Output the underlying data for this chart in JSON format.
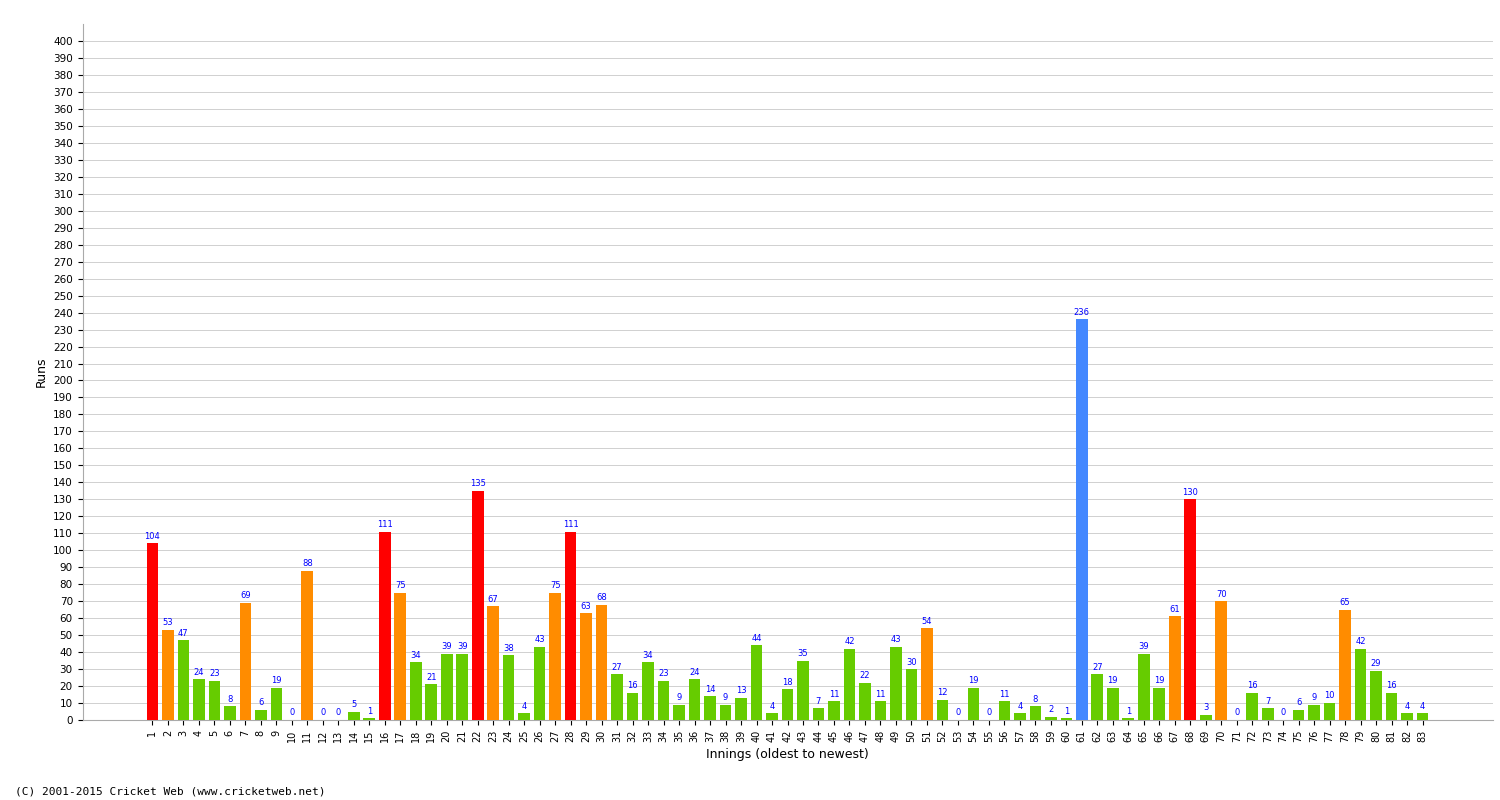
{
  "xlabel": "Innings (oldest to newest)",
  "ylabel": "Runs",
  "background_color": "#ffffff",
  "grid_color": "#d0d0d0",
  "innings": [
    1,
    2,
    3,
    4,
    5,
    6,
    7,
    8,
    9,
    10,
    11,
    12,
    13,
    14,
    15,
    16,
    17,
    18,
    19,
    20,
    21,
    22,
    23,
    24,
    25,
    26,
    27,
    28,
    29,
    30,
    31,
    32,
    33,
    34,
    35,
    36,
    37,
    38,
    39,
    40,
    41,
    42,
    43,
    44,
    45,
    46,
    47,
    48,
    49,
    50,
    51,
    52,
    53,
    54,
    55,
    56,
    57,
    58,
    59,
    60,
    61,
    62,
    63,
    64,
    65,
    66,
    67,
    68,
    69,
    70,
    71,
    72,
    73,
    74,
    75,
    76,
    77,
    78,
    79,
    80,
    81,
    82,
    83
  ],
  "scores": [
    104,
    53,
    47,
    24,
    23,
    8,
    69,
    6,
    19,
    0,
    88,
    0,
    0,
    5,
    1,
    111,
    75,
    34,
    21,
    39,
    39,
    135,
    67,
    38,
    4,
    43,
    75,
    111,
    63,
    68,
    27,
    16,
    34,
    23,
    9,
    24,
    14,
    9,
    13,
    44,
    4,
    18,
    35,
    7,
    11,
    42,
    22,
    11,
    43,
    30,
    54,
    12,
    0,
    19,
    0,
    11,
    4,
    8,
    2,
    1,
    236,
    27,
    19,
    1,
    39,
    19,
    61,
    130,
    3,
    70,
    0,
    16,
    7,
    0,
    6,
    9,
    10,
    65,
    42,
    29,
    16,
    4,
    4
  ],
  "colors": [
    "red",
    "orange",
    "green",
    "green",
    "green",
    "green",
    "orange",
    "green",
    "green",
    "green",
    "orange",
    "green",
    "green",
    "green",
    "green",
    "red",
    "orange",
    "green",
    "green",
    "green",
    "green",
    "red",
    "orange",
    "green",
    "green",
    "green",
    "orange",
    "red",
    "orange",
    "orange",
    "green",
    "green",
    "green",
    "green",
    "green",
    "green",
    "green",
    "green",
    "green",
    "green",
    "green",
    "green",
    "green",
    "green",
    "green",
    "green",
    "green",
    "green",
    "green",
    "green",
    "orange",
    "green",
    "green",
    "green",
    "green",
    "green",
    "green",
    "green",
    "green",
    "green",
    "blue",
    "green",
    "green",
    "green",
    "green",
    "green",
    "orange",
    "red",
    "green",
    "orange",
    "green",
    "green",
    "green",
    "green",
    "green",
    "green",
    "green",
    "orange",
    "green",
    "green",
    "green",
    "green",
    "green"
  ],
  "ylim": [
    0,
    410
  ],
  "yticks": [
    0,
    10,
    20,
    30,
    40,
    50,
    60,
    70,
    80,
    90,
    100,
    110,
    120,
    130,
    140,
    150,
    160,
    170,
    180,
    190,
    200,
    210,
    220,
    230,
    240,
    250,
    260,
    270,
    280,
    290,
    300,
    310,
    320,
    330,
    340,
    350,
    360,
    370,
    380,
    390,
    400
  ],
  "bar_width": 0.75,
  "value_fontsize": 6.0,
  "value_color": "blue",
  "axis_label_fontsize": 9,
  "tick_fontsize": 7.5,
  "xtick_fontsize": 7.0,
  "footer": "(C) 2001-2015 Cricket Web (www.cricketweb.net)",
  "bar_colors_hex": {
    "red": "#ff0000",
    "orange": "#ff8c00",
    "green": "#66cc00",
    "blue": "#4488ff"
  }
}
